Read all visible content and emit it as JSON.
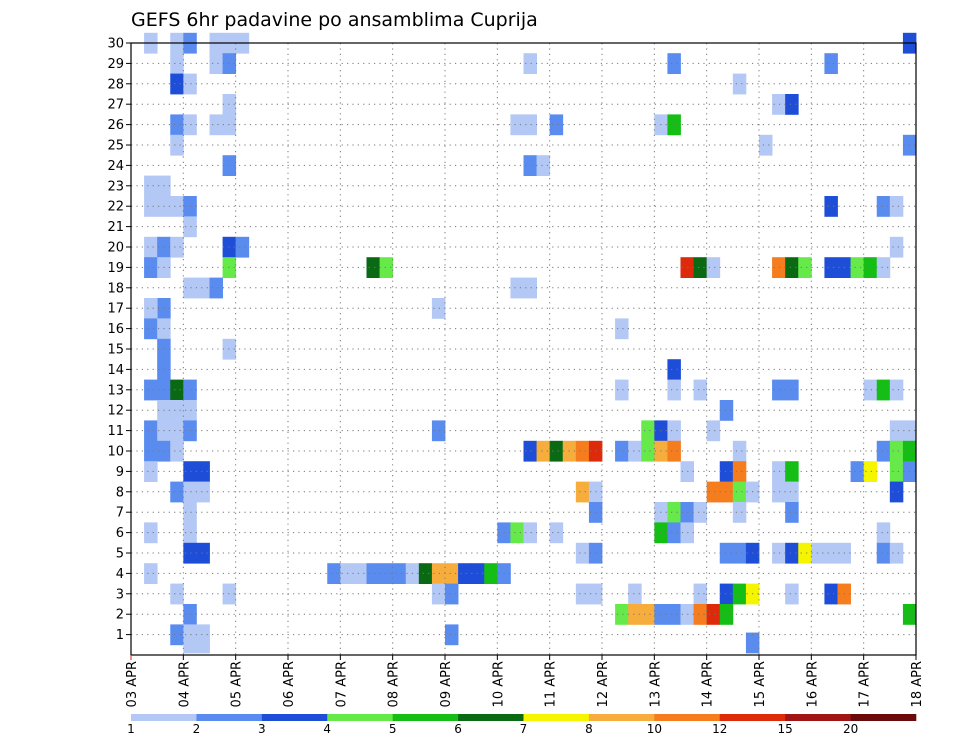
{
  "chart_data": {
    "type": "heatmap",
    "title": "GEFS 6hr padavine po ansamblima Cuprija",
    "xlabel": "",
    "ylabel": "",
    "x_ticks": [
      "03 APR",
      "04 APR",
      "05 APR",
      "06 APR",
      "07 APR",
      "08 APR",
      "09 APR",
      "10 APR",
      "11 APR",
      "12 APR",
      "13 APR",
      "14 APR",
      "15 APR",
      "16 APR",
      "17 APR",
      "18 APR"
    ],
    "y_ticks": [
      "1",
      "2",
      "3",
      "4",
      "5",
      "6",
      "7",
      "8",
      "9",
      "10",
      "11",
      "12",
      "13",
      "14",
      "15",
      "16",
      "17",
      "18",
      "19",
      "20",
      "21",
      "22",
      "23",
      "24",
      "25",
      "26",
      "27",
      "28",
      "29",
      "30"
    ],
    "xlim": [
      0,
      60
    ],
    "ylim": [
      0,
      30
    ],
    "grid": true,
    "color_scale": {
      "labels": [
        "1",
        "2",
        "3",
        "4",
        "5",
        "6",
        "7",
        "8",
        "10",
        "12",
        "15",
        "20"
      ],
      "colors": [
        "#b4c8f5",
        "#5a8cf0",
        "#1e4ed8",
        "#66ea4a",
        "#14be14",
        "#0a6a14",
        "#f5f500",
        "#f7ad3c",
        "#f57d1e",
        "#dc2a0a",
        "#a01414",
        "#6b0a0a"
      ]
    },
    "cells": [
      [
        1,
        30,
        0
      ],
      [
        3,
        30,
        0
      ],
      [
        4,
        30,
        1
      ],
      [
        6,
        30,
        0
      ],
      [
        7,
        30,
        0
      ],
      [
        8,
        30,
        0
      ],
      [
        59,
        30,
        2
      ],
      [
        3,
        29,
        0
      ],
      [
        6,
        29,
        0
      ],
      [
        7,
        29,
        1
      ],
      [
        30,
        29,
        0
      ],
      [
        41,
        29,
        1
      ],
      [
        53,
        29,
        1
      ],
      [
        3,
        28,
        2
      ],
      [
        4,
        28,
        0
      ],
      [
        46,
        28,
        0
      ],
      [
        7,
        27,
        0
      ],
      [
        49,
        27,
        0
      ],
      [
        50,
        27,
        2
      ],
      [
        3,
        26,
        1
      ],
      [
        4,
        26,
        0
      ],
      [
        6,
        26,
        0
      ],
      [
        7,
        26,
        0
      ],
      [
        29,
        26,
        0
      ],
      [
        30,
        26,
        0
      ],
      [
        32,
        26,
        1
      ],
      [
        40,
        26,
        0
      ],
      [
        41,
        26,
        4
      ],
      [
        3,
        25,
        0
      ],
      [
        48,
        25,
        0
      ],
      [
        59,
        25,
        1
      ],
      [
        7,
        24,
        1
      ],
      [
        30,
        24,
        1
      ],
      [
        31,
        24,
        0
      ],
      [
        1,
        23,
        0
      ],
      [
        2,
        23,
        0
      ],
      [
        1,
        22,
        0
      ],
      [
        2,
        22,
        0
      ],
      [
        3,
        22,
        0
      ],
      [
        4,
        22,
        1
      ],
      [
        53,
        22,
        2
      ],
      [
        57,
        22,
        1
      ],
      [
        58,
        22,
        0
      ],
      [
        4,
        21,
        0
      ],
      [
        1,
        20,
        0
      ],
      [
        2,
        20,
        1
      ],
      [
        3,
        20,
        0
      ],
      [
        7,
        20,
        2
      ],
      [
        8,
        20,
        1
      ],
      [
        58,
        20,
        0
      ],
      [
        1,
        19,
        1
      ],
      [
        2,
        19,
        0
      ],
      [
        7,
        19,
        3
      ],
      [
        18,
        19,
        5
      ],
      [
        19,
        19,
        3
      ],
      [
        42,
        19,
        9
      ],
      [
        43,
        19,
        5
      ],
      [
        44,
        19,
        0
      ],
      [
        49,
        19,
        8
      ],
      [
        50,
        19,
        5
      ],
      [
        51,
        19,
        3
      ],
      [
        53,
        19,
        2
      ],
      [
        54,
        19,
        2
      ],
      [
        55,
        19,
        3
      ],
      [
        56,
        19,
        4
      ],
      [
        57,
        19,
        0
      ],
      [
        4,
        18,
        0
      ],
      [
        5,
        18,
        0
      ],
      [
        6,
        18,
        1
      ],
      [
        29,
        18,
        0
      ],
      [
        30,
        18,
        0
      ],
      [
        2,
        17,
        1
      ],
      [
        1,
        17,
        0
      ],
      [
        23,
        17,
        0
      ],
      [
        1,
        16,
        1
      ],
      [
        2,
        16,
        0
      ],
      [
        37,
        16,
        0
      ],
      [
        2,
        15,
        1
      ],
      [
        7,
        15,
        0
      ],
      [
        2,
        14,
        1
      ],
      [
        41,
        14,
        2
      ],
      [
        1,
        13,
        1
      ],
      [
        2,
        13,
        1
      ],
      [
        3,
        13,
        5
      ],
      [
        4,
        13,
        1
      ],
      [
        37,
        13,
        0
      ],
      [
        41,
        13,
        0
      ],
      [
        43,
        13,
        0
      ],
      [
        49,
        13,
        1
      ],
      [
        50,
        13,
        1
      ],
      [
        56,
        13,
        0
      ],
      [
        57,
        13,
        4
      ],
      [
        58,
        13,
        0
      ],
      [
        2,
        12,
        0
      ],
      [
        3,
        12,
        0
      ],
      [
        4,
        12,
        0
      ],
      [
        45,
        12,
        1
      ],
      [
        1,
        11,
        1
      ],
      [
        2,
        11,
        0
      ],
      [
        3,
        11,
        0
      ],
      [
        4,
        11,
        1
      ],
      [
        23,
        11,
        1
      ],
      [
        39,
        11,
        3
      ],
      [
        40,
        11,
        2
      ],
      [
        41,
        11,
        0
      ],
      [
        44,
        11,
        0
      ],
      [
        58,
        11,
        0
      ],
      [
        59,
        11,
        0
      ],
      [
        1,
        10,
        1
      ],
      [
        2,
        10,
        1
      ],
      [
        3,
        10,
        0
      ],
      [
        30,
        10,
        2
      ],
      [
        31,
        10,
        7
      ],
      [
        32,
        10,
        5
      ],
      [
        33,
        10,
        7
      ],
      [
        34,
        10,
        8
      ],
      [
        35,
        10,
        9
      ],
      [
        37,
        10,
        1
      ],
      [
        38,
        10,
        0
      ],
      [
        39,
        10,
        3
      ],
      [
        40,
        10,
        7
      ],
      [
        41,
        10,
        8
      ],
      [
        46,
        10,
        0
      ],
      [
        57,
        10,
        1
      ],
      [
        58,
        10,
        3
      ],
      [
        59,
        10,
        4
      ],
      [
        1,
        9,
        0
      ],
      [
        4,
        9,
        2
      ],
      [
        5,
        9,
        2
      ],
      [
        42,
        9,
        0
      ],
      [
        45,
        9,
        2
      ],
      [
        46,
        9,
        8
      ],
      [
        49,
        9,
        0
      ],
      [
        50,
        9,
        4
      ],
      [
        55,
        9,
        1
      ],
      [
        56,
        9,
        6
      ],
      [
        58,
        9,
        3
      ],
      [
        59,
        9,
        1
      ],
      [
        3,
        8,
        1
      ],
      [
        4,
        8,
        0
      ],
      [
        5,
        8,
        0
      ],
      [
        34,
        8,
        7
      ],
      [
        35,
        8,
        0
      ],
      [
        44,
        8,
        8
      ],
      [
        45,
        8,
        8
      ],
      [
        46,
        8,
        3
      ],
      [
        47,
        8,
        0
      ],
      [
        49,
        8,
        0
      ],
      [
        50,
        8,
        0
      ],
      [
        58,
        8,
        2
      ],
      [
        4,
        7,
        0
      ],
      [
        35,
        7,
        1
      ],
      [
        40,
        7,
        0
      ],
      [
        41,
        7,
        3
      ],
      [
        42,
        7,
        1
      ],
      [
        43,
        7,
        0
      ],
      [
        46,
        7,
        0
      ],
      [
        50,
        7,
        1
      ],
      [
        1,
        6,
        0
      ],
      [
        4,
        6,
        0
      ],
      [
        28,
        6,
        1
      ],
      [
        29,
        6,
        3
      ],
      [
        30,
        6,
        0
      ],
      [
        32,
        6,
        0
      ],
      [
        40,
        6,
        4
      ],
      [
        41,
        6,
        1
      ],
      [
        42,
        6,
        0
      ],
      [
        57,
        6,
        0
      ],
      [
        4,
        5,
        2
      ],
      [
        5,
        5,
        2
      ],
      [
        34,
        5,
        0
      ],
      [
        35,
        5,
        1
      ],
      [
        45,
        5,
        1
      ],
      [
        46,
        5,
        1
      ],
      [
        47,
        5,
        2
      ],
      [
        49,
        5,
        0
      ],
      [
        50,
        5,
        2
      ],
      [
        51,
        5,
        6
      ],
      [
        52,
        5,
        0
      ],
      [
        53,
        5,
        0
      ],
      [
        54,
        5,
        0
      ],
      [
        57,
        5,
        1
      ],
      [
        58,
        5,
        0
      ],
      [
        1,
        4,
        0
      ],
      [
        15,
        4,
        1
      ],
      [
        16,
        4,
        0
      ],
      [
        17,
        4,
        0
      ],
      [
        18,
        4,
        1
      ],
      [
        19,
        4,
        1
      ],
      [
        20,
        4,
        1
      ],
      [
        21,
        4,
        0
      ],
      [
        22,
        4,
        5
      ],
      [
        23,
        4,
        7
      ],
      [
        24,
        4,
        7
      ],
      [
        25,
        4,
        2
      ],
      [
        26,
        4,
        2
      ],
      [
        27,
        4,
        4
      ],
      [
        28,
        4,
        1
      ],
      [
        3,
        3,
        0
      ],
      [
        7,
        3,
        0
      ],
      [
        23,
        3,
        0
      ],
      [
        24,
        3,
        1
      ],
      [
        34,
        3,
        0
      ],
      [
        35,
        3,
        0
      ],
      [
        38,
        3,
        0
      ],
      [
        43,
        3,
        0
      ],
      [
        45,
        3,
        2
      ],
      [
        46,
        3,
        4
      ],
      [
        47,
        3,
        6
      ],
      [
        50,
        3,
        0
      ],
      [
        53,
        3,
        2
      ],
      [
        54,
        3,
        8
      ],
      [
        4,
        2,
        1
      ],
      [
        37,
        2,
        3
      ],
      [
        38,
        2,
        7
      ],
      [
        39,
        2,
        7
      ],
      [
        40,
        2,
        1
      ],
      [
        41,
        2,
        1
      ],
      [
        42,
        2,
        0
      ],
      [
        43,
        2,
        8
      ],
      [
        44,
        2,
        9
      ],
      [
        45,
        2,
        4
      ],
      [
        59,
        2,
        4
      ],
      [
        3,
        1,
        1
      ],
      [
        4,
        1,
        0
      ],
      [
        5,
        1,
        0
      ],
      [
        24,
        1,
        1
      ],
      [
        4,
        0.6,
        0
      ],
      [
        5,
        0.6,
        0
      ],
      [
        47,
        0.6,
        1
      ]
    ]
  }
}
